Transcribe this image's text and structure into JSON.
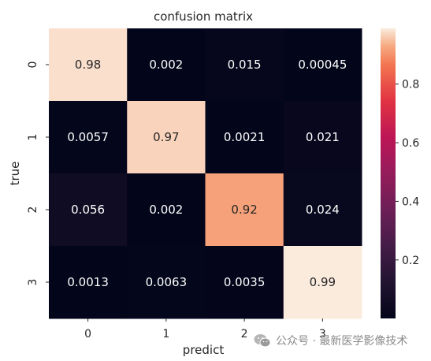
{
  "chart_data": {
    "type": "heatmap",
    "title": "confusion matrix",
    "xlabel": "predict",
    "ylabel": "true",
    "x_categories": [
      "0",
      "1",
      "2",
      "3"
    ],
    "y_categories": [
      "0",
      "1",
      "2",
      "3"
    ],
    "values": [
      [
        0.98,
        0.002,
        0.015,
        0.00045
      ],
      [
        0.0057,
        0.97,
        0.0021,
        0.021
      ],
      [
        0.056,
        0.002,
        0.92,
        0.024
      ],
      [
        0.0013,
        0.0063,
        0.0035,
        0.99
      ]
    ],
    "cell_labels": [
      [
        "0.98",
        "0.002",
        "0.015",
        "0.00045"
      ],
      [
        "0.0057",
        "0.97",
        "0.0021",
        "0.021"
      ],
      [
        "0.056",
        "0.002",
        "0.92",
        "0.024"
      ],
      [
        "0.0013",
        "0.0063",
        "0.0035",
        "0.99"
      ]
    ],
    "colormap": "rocket",
    "colorbar": {
      "range": [
        0.00045,
        0.99
      ],
      "ticks": [
        0.2,
        0.4,
        0.6,
        0.8
      ],
      "tick_labels": [
        "0.2",
        "0.4",
        "0.6",
        "0.8"
      ],
      "placement": "right"
    },
    "grid": false
  },
  "watermark": {
    "icon": "wechat-icon",
    "text": "公众号 · 最新医学影像技术"
  }
}
